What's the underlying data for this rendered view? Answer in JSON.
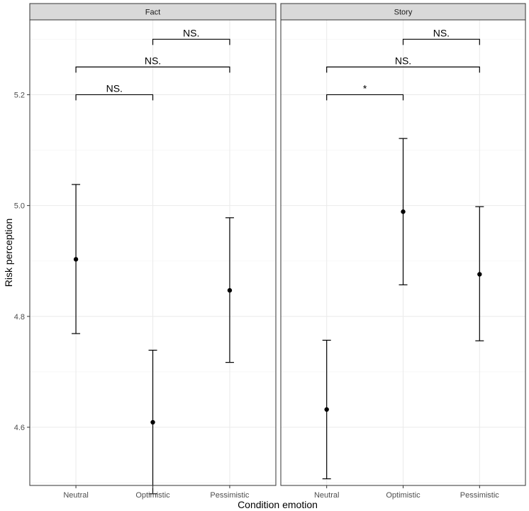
{
  "chart_data": {
    "type": "scatter",
    "chart_subtype": "point-errorbar, faceted",
    "xlabel": "Condition emotion",
    "ylabel": "Risk perception",
    "categories": [
      "Neutral",
      "Optimistic",
      "Pessimistic"
    ],
    "ylim": [
      4.495,
      5.335
    ],
    "yticks": [
      4.6,
      4.8,
      5.0,
      5.2
    ],
    "ytick_labels": [
      "4.6",
      "4.8",
      "5.0",
      "5.2"
    ],
    "grid": true,
    "legend": "none",
    "facets": [
      {
        "label": "Fact",
        "points": [
          {
            "category": "Neutral",
            "mean": 4.903,
            "lower": 4.769,
            "upper": 5.038
          },
          {
            "category": "Optimistic",
            "mean": 4.609,
            "lower": 4.48,
            "upper": 4.739
          },
          {
            "category": "Pessimistic",
            "mean": 4.847,
            "lower": 4.717,
            "upper": 4.978
          }
        ],
        "comparisons": [
          {
            "from": "Neutral",
            "to": "Optimistic",
            "y": 5.2,
            "label": "NS."
          },
          {
            "from": "Neutral",
            "to": "Pessimistic",
            "y": 5.25,
            "label": "NS."
          },
          {
            "from": "Optimistic",
            "to": "Pessimistic",
            "y": 5.3,
            "label": "NS."
          }
        ]
      },
      {
        "label": "Story",
        "points": [
          {
            "category": "Neutral",
            "mean": 4.632,
            "lower": 4.507,
            "upper": 4.757
          },
          {
            "category": "Optimistic",
            "mean": 4.989,
            "lower": 4.857,
            "upper": 5.121
          },
          {
            "category": "Pessimistic",
            "mean": 4.876,
            "lower": 4.756,
            "upper": 4.998
          }
        ],
        "comparisons": [
          {
            "from": "Neutral",
            "to": "Optimistic",
            "y": 5.2,
            "label": "*"
          },
          {
            "from": "Neutral",
            "to": "Pessimistic",
            "y": 5.25,
            "label": "NS."
          },
          {
            "from": "Optimistic",
            "to": "Pessimistic",
            "y": 5.3,
            "label": "NS."
          }
        ]
      }
    ]
  },
  "colors": {
    "strip_fill": "#d9d9d9",
    "panel_border": "#333333",
    "grid_major": "#ebebeb",
    "grid_minor": "#f5f5f5",
    "marks": "#000000",
    "tick_text": "#4d4d4d"
  }
}
